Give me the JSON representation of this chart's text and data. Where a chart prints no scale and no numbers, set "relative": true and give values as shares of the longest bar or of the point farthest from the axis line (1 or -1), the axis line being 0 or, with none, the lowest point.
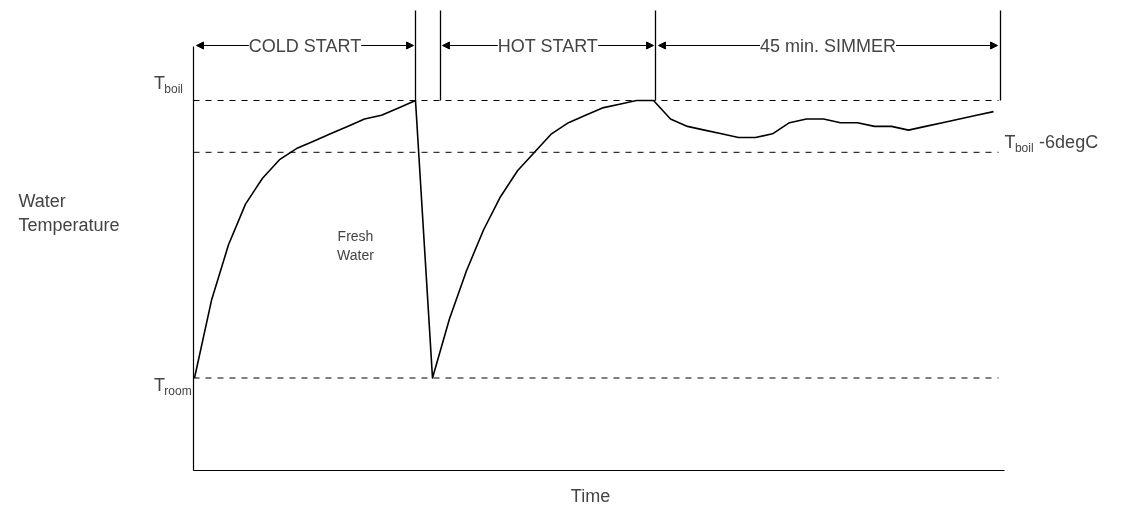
{
  "chart_data": {
    "type": "line",
    "xlabel": "Time",
    "ylabel": "Water Temperature",
    "relative": true,
    "categories": [
      null,
      null,
      null,
      null,
      null,
      null,
      null,
      null,
      null,
      null,
      null,
      null,
      null,
      null,
      null,
      null,
      null,
      null,
      null,
      null,
      null,
      null,
      null,
      null,
      null,
      null,
      null,
      null,
      null,
      null,
      null,
      null,
      null,
      null,
      null,
      null,
      null,
      null,
      null,
      null,
      null,
      null,
      null,
      null,
      null,
      null,
      null,
      null
    ],
    "series": [
      {
        "color": "#000000",
        "values": [
          0.25,
          0.46,
          0.61,
          0.72,
          0.79,
          0.84,
          0.87,
          0.89,
          0.91,
          0.93,
          0.95,
          0.96,
          0.98,
          1,
          0.25,
          0.41,
          0.54,
          0.65,
          0.74,
          0.81,
          0.86,
          0.91,
          0.94,
          0.96,
          0.98,
          0.99,
          1.0,
          1,
          0.95,
          0.93,
          0.92,
          0.91,
          0.9,
          0.9,
          0.91,
          0.94,
          0.95,
          0.95,
          0.94,
          0.94,
          0.93,
          0.93,
          0.92,
          0.93,
          0.94,
          0.95,
          0.96,
          0.97
        ]
      }
    ],
    "ref_lines": [
      {
        "axis": "y",
        "value": 1,
        "label": "T$_{boil}$",
        "color": "#000000",
        "line_style": "dashed"
      },
      {
        "axis": "y",
        "value": 0.25,
        "label": "T$_{room}$",
        "color": "#000000",
        "line_style": "dashed"
      },
      {
        "axis": "y",
        "value": 0.86,
        "label": "T$_{boil}$-6degC",
        "color": "#000000",
        "line_style": "dashed"
      }
    ],
    "annotations": [
      "COLD START",
      "HOT START",
      "45 min. SIMMER",
      "Fresh Water"
    ],
    "marker": "none",
    "line_style": "solid"
  }
}
